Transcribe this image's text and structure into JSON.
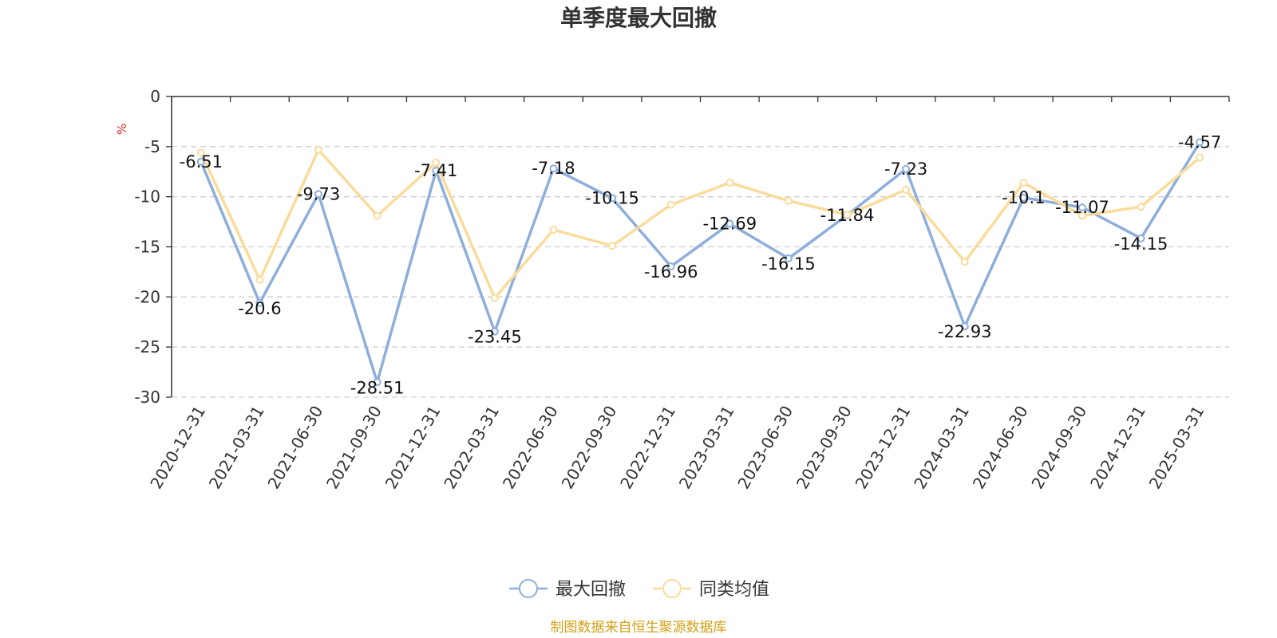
{
  "chart_data": {
    "type": "line",
    "title": "单季度最大回撤",
    "ylabel": "%",
    "ylim": [
      -30,
      0
    ],
    "yticks": [
      0,
      -5,
      -10,
      -15,
      -20,
      -25,
      -30
    ],
    "grid": true,
    "legend_position": "bottom-center",
    "categories": [
      "2020-12-31",
      "2021-03-31",
      "2021-06-30",
      "2021-09-30",
      "2021-12-31",
      "2022-03-31",
      "2022-06-30",
      "2022-09-30",
      "2022-12-31",
      "2023-03-31",
      "2023-06-30",
      "2023-09-30",
      "2023-12-31",
      "2024-03-31",
      "2024-06-30",
      "2024-09-30",
      "2024-12-31",
      "2025-03-31"
    ],
    "series": [
      {
        "name": "最大回撤",
        "color": "#8eaedb",
        "values": [
          -6.51,
          -20.6,
          -9.73,
          -28.51,
          -7.41,
          -23.45,
          -7.18,
          -10.15,
          -16.96,
          -12.69,
          -16.15,
          -11.84,
          -7.23,
          -22.93,
          -10.1,
          -11.07,
          -14.15,
          -4.57
        ],
        "labels": [
          "-6.51",
          "-20.6",
          "-9.73",
          "-28.51",
          "-7.41",
          "-23.45",
          "-7.18",
          "-10.15",
          "-16.96",
          "-12.69",
          "-16.15",
          "-11.84",
          "-7.23",
          "-22.93",
          "-10.1",
          "-11.07",
          "-14.15",
          "-4.57"
        ]
      },
      {
        "name": "同类均值",
        "color": "#f9dc9c",
        "values": [
          -5.6,
          -18.3,
          -5.3,
          -11.9,
          -6.6,
          -20.1,
          -13.3,
          -14.9,
          -10.8,
          -8.6,
          -10.4,
          -11.8,
          -9.3,
          -16.5,
          -8.6,
          -11.9,
          -11.0,
          -6.1
        ]
      }
    ],
    "source": "制图数据来自恒生聚源数据库"
  }
}
